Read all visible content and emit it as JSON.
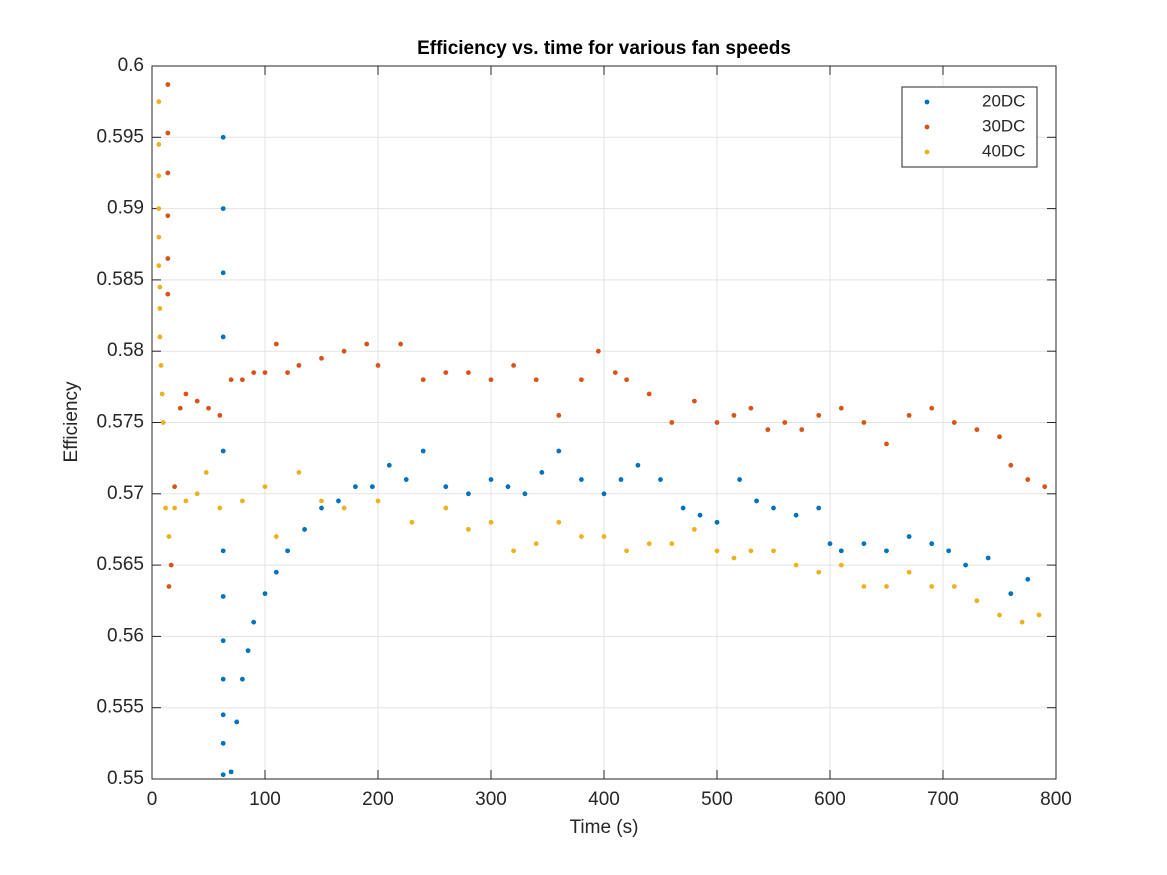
{
  "chart_data": {
    "type": "scatter",
    "title": "Efficiency vs. time for various fan speeds",
    "x_label": "Time (s)",
    "y_label": "Efficiency",
    "xlim": [
      0,
      800
    ],
    "ylim": [
      0.55,
      0.6
    ],
    "xticks": [
      0,
      100,
      200,
      300,
      400,
      500,
      600,
      700,
      800
    ],
    "yticks": [
      0.55,
      0.555,
      0.56,
      0.565,
      0.57,
      0.575,
      0.58,
      0.585,
      0.59,
      0.595,
      0.6
    ],
    "grid": true,
    "legend": "top-right",
    "series": [
      {
        "name": "20DC",
        "color": "#0072bd",
        "x": [
          63,
          63,
          63,
          63,
          63,
          63,
          63,
          63,
          63,
          63,
          63,
          63,
          70,
          75,
          80,
          85,
          90,
          100,
          110,
          120,
          135,
          150,
          165,
          180,
          195,
          210,
          225,
          240,
          260,
          280,
          300,
          315,
          330,
          345,
          360,
          380,
          400,
          415,
          430,
          450,
          470,
          485,
          500,
          520,
          535,
          550,
          570,
          590,
          600,
          610,
          630,
          650,
          670,
          690,
          705,
          720,
          740,
          760,
          775
        ],
        "values": [
          0.595,
          0.59,
          0.5855,
          0.581,
          0.573,
          0.566,
          0.5628,
          0.5597,
          0.557,
          0.5545,
          0.5525,
          0.5503,
          0.5505,
          0.554,
          0.557,
          0.559,
          0.561,
          0.563,
          0.5645,
          0.566,
          0.5675,
          0.569,
          0.5695,
          0.5705,
          0.5705,
          0.572,
          0.571,
          0.573,
          0.5705,
          0.57,
          0.571,
          0.5705,
          0.57,
          0.5715,
          0.573,
          0.571,
          0.57,
          0.571,
          0.572,
          0.571,
          0.569,
          0.5685,
          0.568,
          0.571,
          0.5695,
          0.569,
          0.5685,
          0.569,
          0.5665,
          0.566,
          0.5665,
          0.566,
          0.567,
          0.5665,
          0.566,
          0.565,
          0.5655,
          0.563,
          0.564
        ]
      },
      {
        "name": "30DC",
        "color": "#d95319",
        "x": [
          14,
          14,
          14,
          14,
          14,
          14,
          15,
          17,
          20,
          25,
          30,
          40,
          50,
          60,
          70,
          80,
          90,
          100,
          110,
          120,
          130,
          150,
          170,
          190,
          200,
          220,
          240,
          260,
          280,
          300,
          320,
          340,
          360,
          380,
          395,
          410,
          420,
          440,
          460,
          480,
          500,
          515,
          530,
          545,
          560,
          575,
          590,
          610,
          630,
          650,
          670,
          690,
          710,
          730,
          750,
          760,
          775,
          790
        ],
        "values": [
          0.5987,
          0.5953,
          0.5925,
          0.5895,
          0.5865,
          0.584,
          0.5635,
          0.565,
          0.5705,
          0.576,
          0.577,
          0.5765,
          0.576,
          0.5755,
          0.578,
          0.578,
          0.5785,
          0.5785,
          0.5805,
          0.5785,
          0.579,
          0.5795,
          0.58,
          0.5805,
          0.579,
          0.5805,
          0.578,
          0.5785,
          0.5785,
          0.578,
          0.579,
          0.578,
          0.5755,
          0.578,
          0.58,
          0.5785,
          0.578,
          0.577,
          0.575,
          0.5765,
          0.575,
          0.5755,
          0.576,
          0.5745,
          0.575,
          0.5745,
          0.5755,
          0.576,
          0.575,
          0.5735,
          0.5755,
          0.576,
          0.575,
          0.5745,
          0.574,
          0.572,
          0.571,
          0.5705
        ]
      },
      {
        "name": "40DC",
        "color": "#edb120",
        "x": [
          6,
          6,
          6,
          6,
          6,
          6,
          7,
          7,
          7,
          8,
          9,
          10,
          12,
          15,
          20,
          30,
          40,
          48,
          60,
          80,
          100,
          110,
          130,
          150,
          170,
          200,
          230,
          260,
          280,
          300,
          320,
          340,
          360,
          380,
          400,
          420,
          440,
          460,
          480,
          500,
          515,
          530,
          550,
          570,
          590,
          610,
          630,
          650,
          670,
          690,
          710,
          730,
          750,
          770,
          785
        ],
        "values": [
          0.5975,
          0.5945,
          0.5923,
          0.59,
          0.588,
          0.586,
          0.5845,
          0.583,
          0.581,
          0.579,
          0.577,
          0.575,
          0.569,
          0.567,
          0.569,
          0.5695,
          0.57,
          0.5715,
          0.569,
          0.5695,
          0.5705,
          0.567,
          0.5715,
          0.5695,
          0.569,
          0.5695,
          0.568,
          0.569,
          0.5675,
          0.568,
          0.566,
          0.5665,
          0.568,
          0.567,
          0.567,
          0.566,
          0.5665,
          0.5665,
          0.5675,
          0.566,
          0.5655,
          0.566,
          0.566,
          0.565,
          0.5645,
          0.565,
          0.5635,
          0.5635,
          0.5645,
          0.5635,
          0.5635,
          0.5625,
          0.5615,
          0.561,
          0.5615
        ]
      }
    ]
  }
}
